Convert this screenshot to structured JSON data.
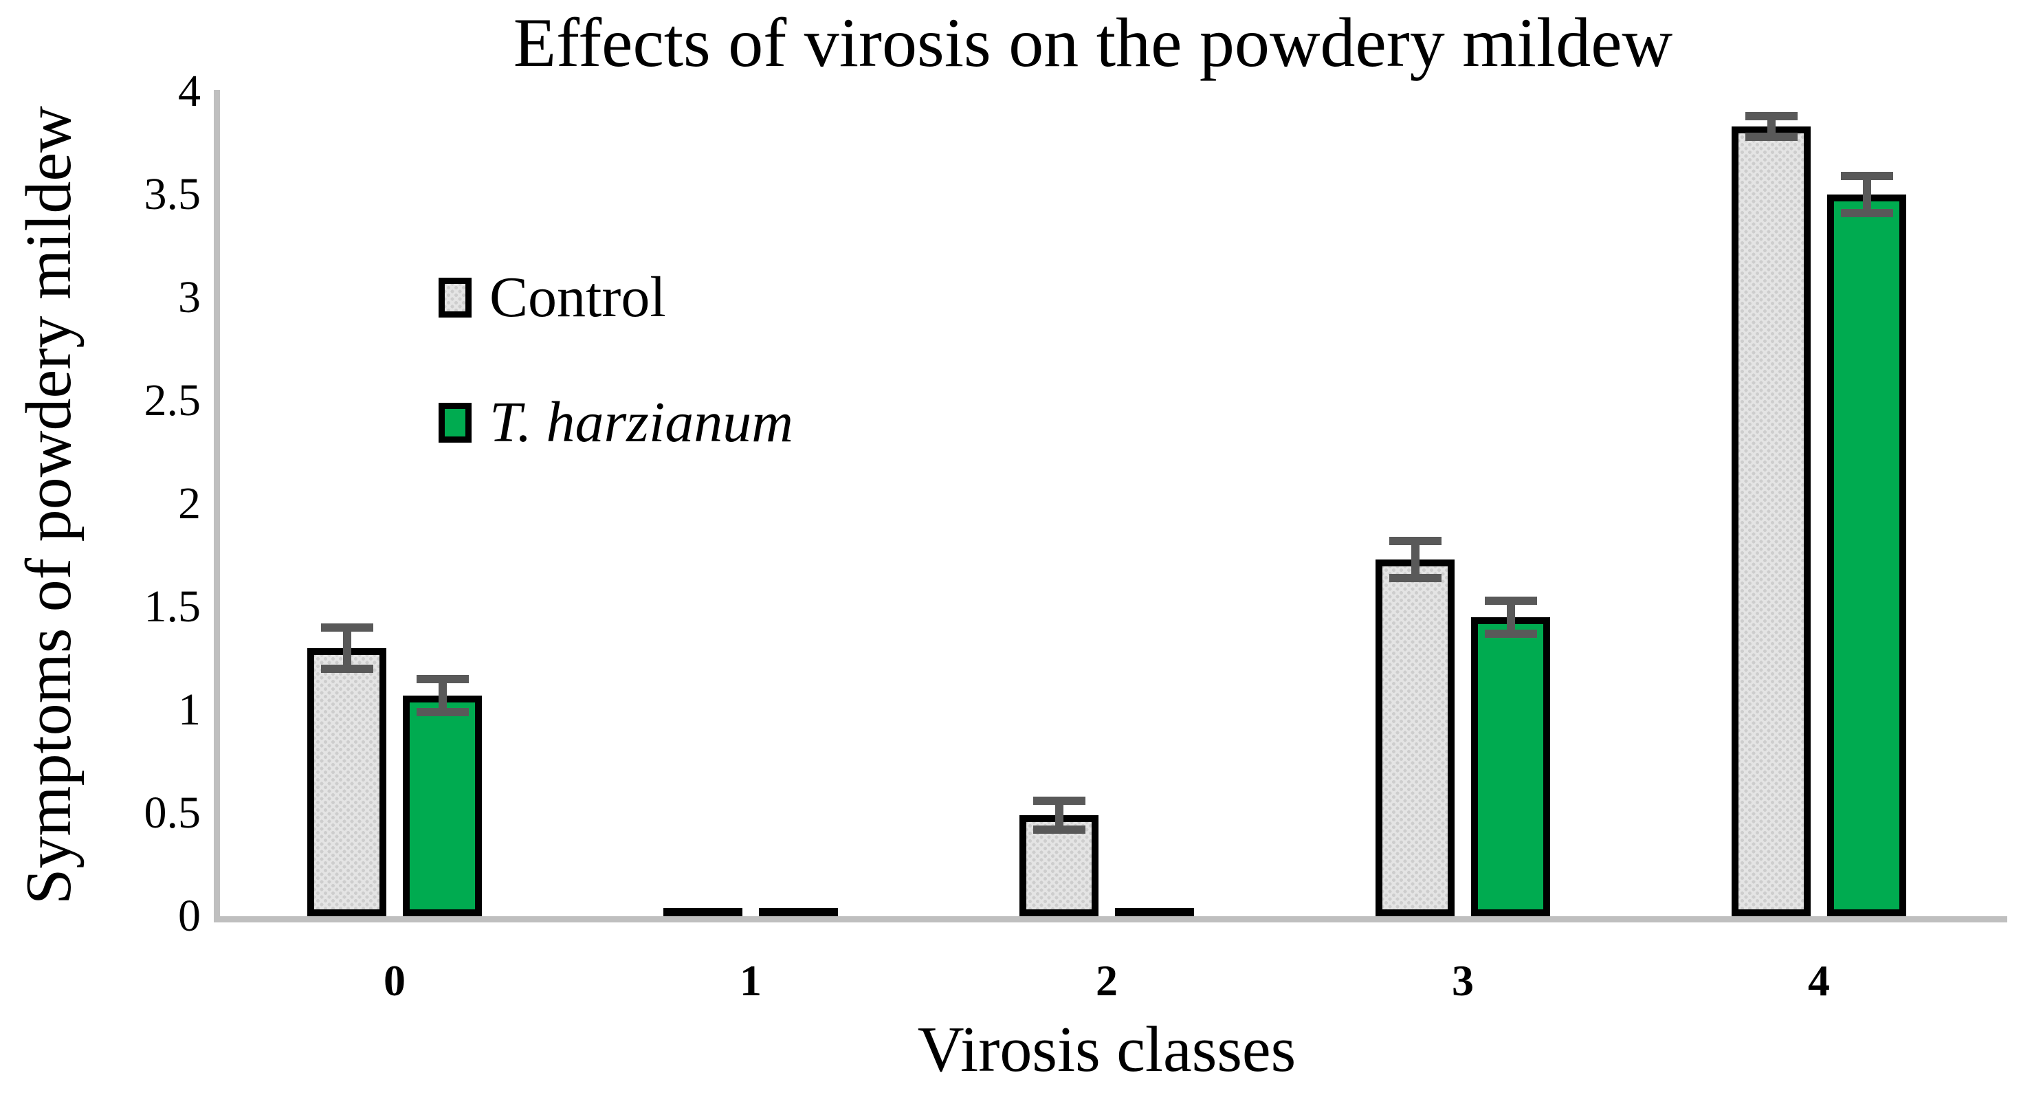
{
  "title": "Effects of virosis on the powdery mildew",
  "y_axis": {
    "label": "Symptoms of powdery mildew",
    "ticks": [
      0,
      0.5,
      1,
      1.5,
      2,
      2.5,
      3,
      3.5,
      4
    ],
    "range": [
      0,
      4
    ]
  },
  "x_axis": {
    "label": "Virosis classes",
    "categories": [
      "0",
      "1",
      "2",
      "3",
      "4"
    ]
  },
  "legend": [
    {
      "label": "Control",
      "swatch": "stippled-gray"
    },
    {
      "label": "T. harzianum",
      "swatch": "green",
      "italic": true
    }
  ],
  "colors": {
    "green": "#00AB50",
    "control_fill_base": "#E4E4E4",
    "control_fill_dot": "#CDCDCD",
    "bar_border": "#000000",
    "error_bar": "#595959",
    "axis_line": "#BFBFBF",
    "text": "#000000"
  },
  "chart_data": {
    "type": "bar",
    "title": "Effects of virosis on the powdery mildew",
    "xlabel": "Virosis classes",
    "ylabel": "Symptoms of powdery mildew",
    "categories": [
      "0",
      "1",
      "2",
      "3",
      "4"
    ],
    "y_ticks": [
      0,
      0.5,
      1,
      1.5,
      2,
      2.5,
      3,
      3.5,
      4
    ],
    "ylim": [
      0,
      4
    ],
    "grid": false,
    "legend_position": "upper-left-inside",
    "error_bars": true,
    "series": [
      {
        "name": "Control",
        "style": "stipple",
        "values": [
          1.3,
          0.02,
          0.49,
          1.73,
          3.83
        ],
        "errors": [
          0.1,
          0,
          0.07,
          0.09,
          0.05
        ]
      },
      {
        "name": "T. harzianum",
        "style": "green",
        "values": [
          1.07,
          0.02,
          0.02,
          1.45,
          3.5
        ],
        "errors": [
          0.08,
          0,
          0,
          0.08,
          0.09
        ]
      }
    ]
  }
}
